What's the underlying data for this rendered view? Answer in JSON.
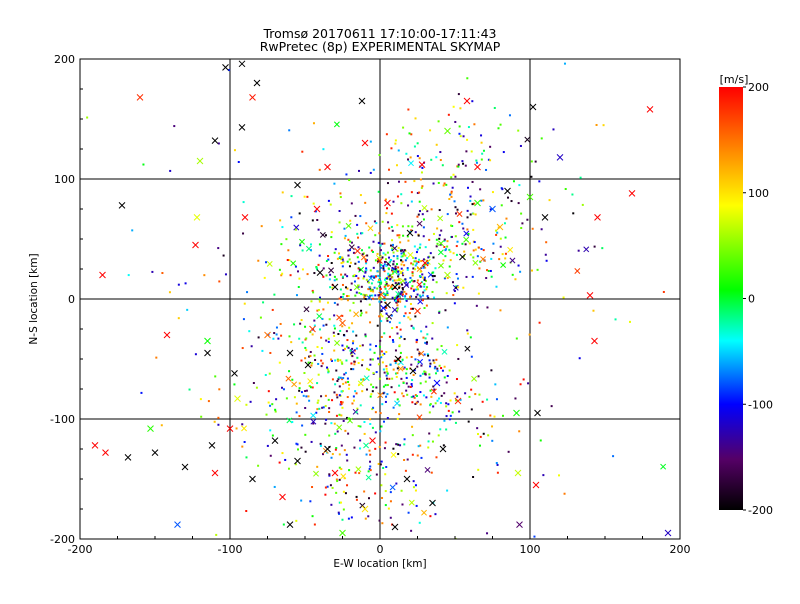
{
  "chart_data": {
    "type": "scatter",
    "title": "Tromsø 20170611 17:10:00-17:11:43",
    "subtitle": "RwPretec (8p) EXPERIMENTAL SKYMAP",
    "xlabel": "E-W location [km]",
    "ylabel": "N-S location [km]",
    "xlim": [
      -200,
      200
    ],
    "ylim": [
      -200,
      200
    ],
    "x_ticks": [
      "-200",
      "-100",
      "0",
      "100",
      "200"
    ],
    "y_ticks": [
      "-200",
      "-100",
      "0",
      "100",
      "200"
    ],
    "grid": true,
    "colorbar": {
      "label": "[m/s]",
      "range": [
        -200,
        200
      ],
      "ticks": [
        "200",
        "100",
        "0",
        "-100",
        "-200"
      ],
      "colormap": "black-purple-blue-cyan-green-yellow-red"
    },
    "markers": [
      "dot",
      "x"
    ],
    "crosses": [
      {
        "x": -160,
        "y": 168,
        "v": 180
      },
      {
        "x": -103,
        "y": 193,
        "v": -200
      },
      {
        "x": -92,
        "y": 196,
        "v": -200
      },
      {
        "x": -82,
        "y": 180,
        "v": -200
      },
      {
        "x": -110,
        "y": 132,
        "v": -200
      },
      {
        "x": -92,
        "y": 143,
        "v": -200
      },
      {
        "x": -12,
        "y": 165,
        "v": -200
      },
      {
        "x": 58,
        "y": 165,
        "v": 200
      },
      {
        "x": 120,
        "y": 118,
        "v": -120
      },
      {
        "x": 180,
        "y": 158,
        "v": 200
      },
      {
        "x": -120,
        "y": 115,
        "v": 60
      },
      {
        "x": -85,
        "y": 168,
        "v": 190
      },
      {
        "x": -172,
        "y": 78,
        "v": -200
      },
      {
        "x": -122,
        "y": 68,
        "v": 80
      },
      {
        "x": -123,
        "y": 45,
        "v": 200
      },
      {
        "x": -185,
        "y": 20,
        "v": 200
      },
      {
        "x": -90,
        "y": 68,
        "v": 200
      },
      {
        "x": -55,
        "y": 95,
        "v": -200
      },
      {
        "x": 102,
        "y": 160,
        "v": -200
      },
      {
        "x": 100,
        "y": 85,
        "v": 30
      },
      {
        "x": 110,
        "y": 68,
        "v": -200
      },
      {
        "x": 145,
        "y": 68,
        "v": 200
      },
      {
        "x": 168,
        "y": 88,
        "v": 200
      },
      {
        "x": 140,
        "y": 3,
        "v": 200
      },
      {
        "x": 143,
        "y": -35,
        "v": 200
      },
      {
        "x": -142,
        "y": -30,
        "v": 200
      },
      {
        "x": -115,
        "y": -35,
        "v": 10
      },
      {
        "x": -115,
        "y": -45,
        "v": -200
      },
      {
        "x": -97,
        "y": -62,
        "v": -200
      },
      {
        "x": -95,
        "y": -83,
        "v": 80
      },
      {
        "x": -190,
        "y": -122,
        "v": 200
      },
      {
        "x": -183,
        "y": -128,
        "v": 200
      },
      {
        "x": -168,
        "y": -132,
        "v": -200
      },
      {
        "x": -150,
        "y": -128,
        "v": -200
      },
      {
        "x": -153,
        "y": -108,
        "v": 20
      },
      {
        "x": -130,
        "y": -140,
        "v": -200
      },
      {
        "x": -112,
        "y": -122,
        "v": -200
      },
      {
        "x": -110,
        "y": -145,
        "v": 200
      },
      {
        "x": -100,
        "y": -108,
        "v": 200
      },
      {
        "x": -135,
        "y": -188,
        "v": -80
      },
      {
        "x": -60,
        "y": -188,
        "v": -200
      },
      {
        "x": 105,
        "y": -95,
        "v": -200
      },
      {
        "x": 91,
        "y": -95,
        "v": 10
      },
      {
        "x": 92,
        "y": -145,
        "v": 70
      },
      {
        "x": 104,
        "y": -155,
        "v": 200
      },
      {
        "x": 93,
        "y": -188,
        "v": -150
      },
      {
        "x": 192,
        "y": -195,
        "v": -120
      },
      {
        "x": -40,
        "y": 22,
        "v": -200
      },
      {
        "x": -30,
        "y": 10,
        "v": -200
      },
      {
        "x": -15,
        "y": 40,
        "v": 180
      },
      {
        "x": -25,
        "y": -20,
        "v": 160
      },
      {
        "x": -45,
        "y": -25,
        "v": 170
      },
      {
        "x": -48,
        "y": -55,
        "v": -200
      },
      {
        "x": -60,
        "y": -45,
        "v": -200
      },
      {
        "x": -75,
        "y": -30,
        "v": 150
      },
      {
        "x": 20,
        "y": 55,
        "v": -200
      },
      {
        "x": 30,
        "y": 30,
        "v": 200
      },
      {
        "x": 10,
        "y": 10,
        "v": -200
      },
      {
        "x": 5,
        "y": -5,
        "v": -200
      },
      {
        "x": 25,
        "y": -10,
        "v": 180
      },
      {
        "x": 45,
        "y": 20,
        "v": 60
      },
      {
        "x": 55,
        "y": 35,
        "v": -200
      },
      {
        "x": 65,
        "y": 80,
        "v": 20
      },
      {
        "x": 75,
        "y": 75,
        "v": -80
      },
      {
        "x": 85,
        "y": 90,
        "v": -200
      },
      {
        "x": 80,
        "y": 60,
        "v": 120
      },
      {
        "x": 12,
        "y": -50,
        "v": -200
      },
      {
        "x": 22,
        "y": -60,
        "v": -200
      },
      {
        "x": 38,
        "y": -70,
        "v": -100
      },
      {
        "x": 52,
        "y": -85,
        "v": 180
      },
      {
        "x": -5,
        "y": -118,
        "v": 200
      },
      {
        "x": -35,
        "y": -125,
        "v": -200
      },
      {
        "x": -55,
        "y": -135,
        "v": -200
      },
      {
        "x": -30,
        "y": -145,
        "v": 200
      },
      {
        "x": 18,
        "y": -150,
        "v": -200
      },
      {
        "x": 35,
        "y": -170,
        "v": -200
      },
      {
        "x": 10,
        "y": -190,
        "v": -200
      },
      {
        "x": -10,
        "y": -175,
        "v": 100
      },
      {
        "x": -25,
        "y": -195,
        "v": 30
      },
      {
        "x": 42,
        "y": -125,
        "v": -200
      },
      {
        "x": -70,
        "y": -118,
        "v": -200
      },
      {
        "x": -85,
        "y": -150,
        "v": -200
      },
      {
        "x": -65,
        "y": -165,
        "v": 200
      },
      {
        "x": 28,
        "y": 112,
        "v": 200
      },
      {
        "x": 45,
        "y": 140,
        "v": 40
      },
      {
        "x": 65,
        "y": 110,
        "v": 200
      },
      {
        "x": -10,
        "y": 130,
        "v": 200
      },
      {
        "x": -35,
        "y": 110,
        "v": 200
      },
      {
        "x": -42,
        "y": 75,
        "v": 200
      },
      {
        "x": 5,
        "y": 80,
        "v": 200
      }
    ],
    "clusters": [
      {
        "cx": 10,
        "cy": 15,
        "sx": 14,
        "sy": 16,
        "n": 320
      },
      {
        "cx": 45,
        "cy": 45,
        "sx": 30,
        "sy": 25,
        "n": 200
      },
      {
        "cx": -20,
        "cy": 30,
        "sx": 28,
        "sy": 25,
        "n": 150
      },
      {
        "cx": 15,
        "cy": -60,
        "sx": 22,
        "sy": 22,
        "n": 200
      },
      {
        "cx": -35,
        "cy": -35,
        "sx": 25,
        "sy": 30,
        "n": 150
      },
      {
        "cx": -15,
        "cy": -140,
        "sx": 28,
        "sy": 28,
        "n": 170
      },
      {
        "cx": 40,
        "cy": 110,
        "sx": 38,
        "sy": 30,
        "n": 130
      },
      {
        "cx": -40,
        "cy": -80,
        "sx": 30,
        "sy": 25,
        "n": 100
      },
      {
        "cx": 55,
        "cy": -90,
        "sx": 20,
        "sy": 18,
        "n": 60
      },
      {
        "cx": 0,
        "cy": 0,
        "sx": 90,
        "sy": 95,
        "n": 160
      },
      {
        "cx": 0,
        "cy": 0,
        "sx": 170,
        "sy": 170,
        "n": 70
      }
    ]
  }
}
